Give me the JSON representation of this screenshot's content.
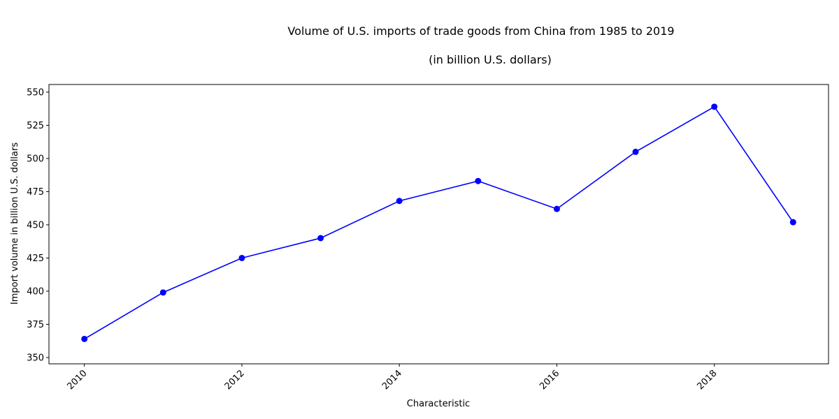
{
  "chart_data": {
    "type": "line",
    "title": "Volume of U.S. imports of trade goods from China from 1985 to 2019",
    "subtitle": "(in billion U.S. dollars)",
    "xlabel": "Characteristic",
    "ylabel": "Import volume in billion U.S. dollars",
    "x": [
      2010,
      2011,
      2012,
      2013,
      2014,
      2015,
      2016,
      2017,
      2018,
      2019
    ],
    "series": [
      {
        "values": [
          364,
          399,
          425,
          440,
          468,
          483,
          462,
          505,
          539,
          452
        ],
        "color": "#0000ff"
      }
    ],
    "xticks": [
      "2010",
      "2012",
      "2014",
      "2016",
      "2018"
    ],
    "yticks": [
      "350",
      "375",
      "400",
      "425",
      "450",
      "475",
      "500",
      "525",
      "550"
    ],
    "xlim": [
      2009.55,
      2019.45
    ],
    "ylim": [
      345.25,
      555.75
    ],
    "grid": false,
    "legend": false
  }
}
